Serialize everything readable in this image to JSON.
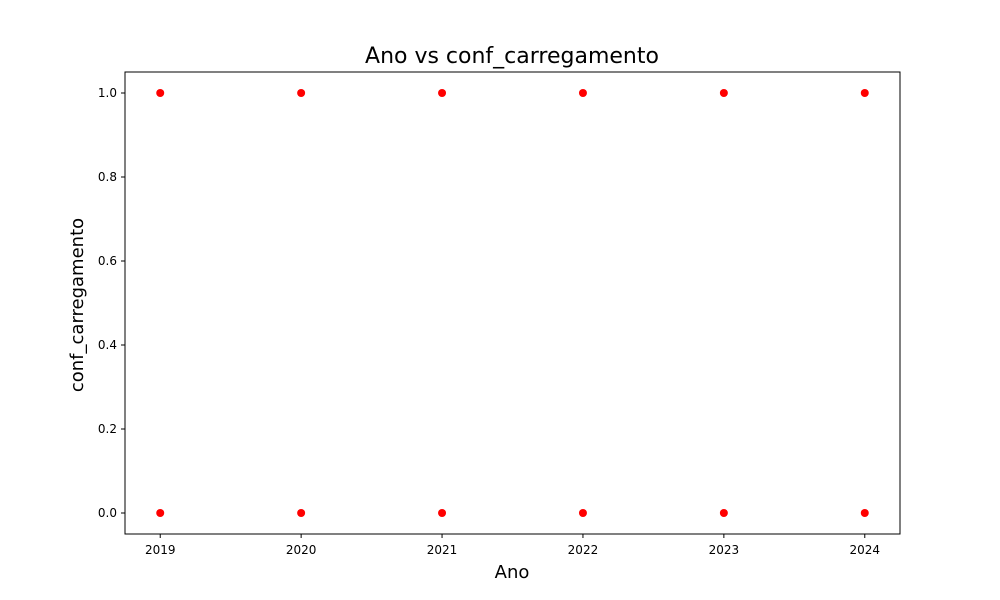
{
  "chart_data": {
    "type": "scatter",
    "title": "Ano vs conf_carregamento",
    "xlabel": "Ano",
    "ylabel": "conf_carregamento",
    "x_ticks": [
      2019,
      2020,
      2021,
      2022,
      2023,
      2024
    ],
    "y_ticks": [
      0.0,
      0.2,
      0.4,
      0.6,
      0.8,
      1.0
    ],
    "xlim": [
      2018.75,
      2024.25
    ],
    "ylim": [
      -0.05,
      1.05
    ],
    "grid": false,
    "marker_color": "#ff0000",
    "points": [
      {
        "x": 2019,
        "y": 1.0
      },
      {
        "x": 2019,
        "y": 0.0
      },
      {
        "x": 2020,
        "y": 1.0
      },
      {
        "x": 2020,
        "y": 0.0
      },
      {
        "x": 2021,
        "y": 1.0
      },
      {
        "x": 2021,
        "y": 0.0
      },
      {
        "x": 2022,
        "y": 1.0
      },
      {
        "x": 2022,
        "y": 0.0
      },
      {
        "x": 2023,
        "y": 1.0
      },
      {
        "x": 2023,
        "y": 0.0
      },
      {
        "x": 2024,
        "y": 1.0
      },
      {
        "x": 2024,
        "y": 0.0
      }
    ]
  }
}
